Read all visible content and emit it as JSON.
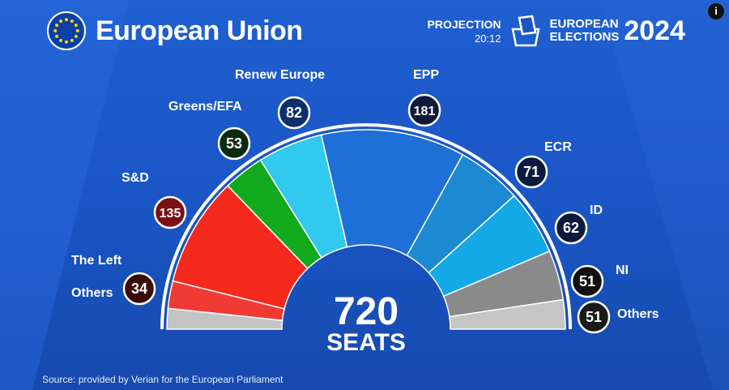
{
  "header": {
    "title": "European Union",
    "projection_label": "PROJECTION",
    "time": "20:12",
    "elections_line1": "EUROPEAN",
    "elections_line2": "ELECTIONS",
    "year": "2024"
  },
  "info_icon": "info-icon",
  "source": "Source: provided by Verian for the European Parliament",
  "chart_data": {
    "type": "parliament",
    "total": {
      "value": "720",
      "unit": "SEATS"
    },
    "series": [
      {
        "name": "Others",
        "value": null,
        "color": "#c4c4c4"
      },
      {
        "name": "The Left",
        "value": 34,
        "color": "#ef3b33"
      },
      {
        "name": "S&D",
        "value": 135,
        "color": "#f5291c"
      },
      {
        "name": "Greens/EFA",
        "value": 53,
        "color": "#13a91d"
      },
      {
        "name": "Renew Europe",
        "value": 82,
        "color": "#32c9ee"
      },
      {
        "name": "EPP",
        "value": 181,
        "color": "#1e6fd6"
      },
      {
        "name": "ECR",
        "value": 71,
        "color": "#1b8ad2"
      },
      {
        "name": "ID",
        "value": 62,
        "color": "#13a9e6"
      },
      {
        "name": "NI",
        "value": 51,
        "color": "#8a8a8a"
      },
      {
        "name": "Others",
        "value": 51,
        "color": "#c6c6c6"
      }
    ],
    "badge_colors": {
      "The Left": "#3a0a0a",
      "S&D": "#7a0f14",
      "Greens/EFA": "#0b2a10",
      "Renew Europe": "#0e2f6e",
      "EPP": "#0d1a3a",
      "ECR": "#0b1a3e",
      "ID": "#0b1a3e",
      "NI": "#111111",
      "Others": "#1a1a1a"
    }
  }
}
